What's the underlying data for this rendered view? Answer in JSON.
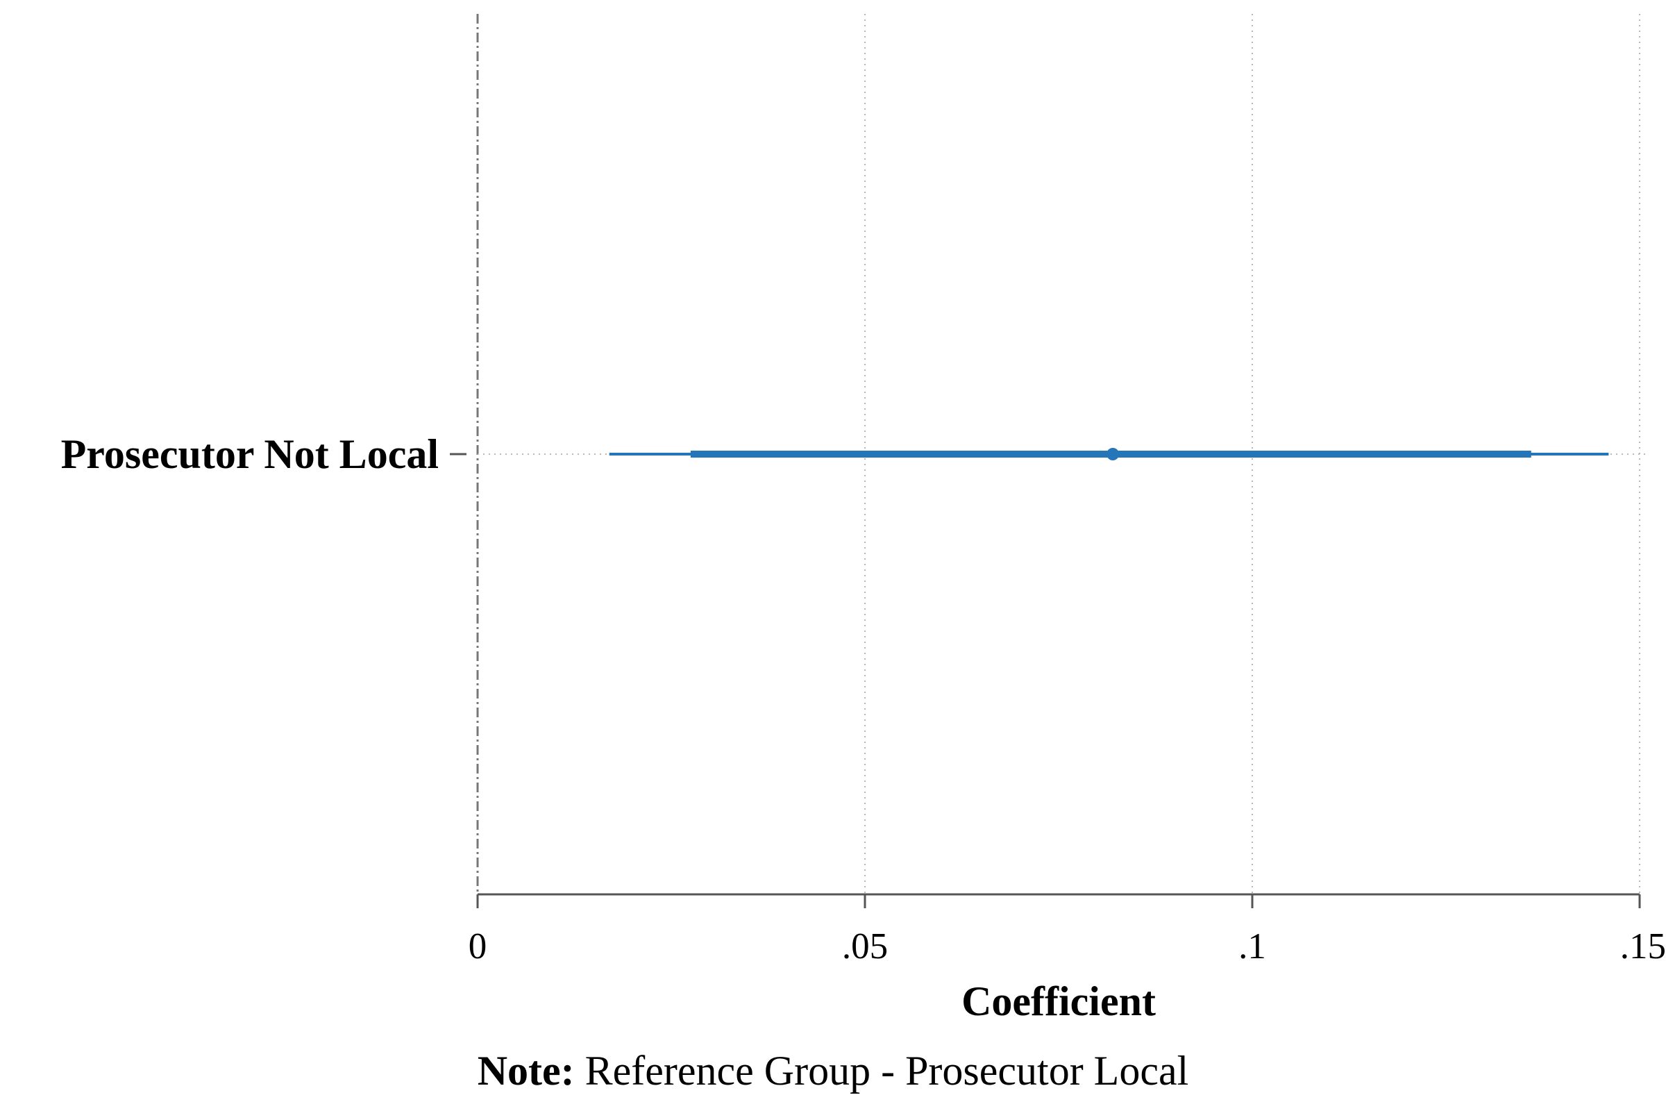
{
  "chart_data": {
    "type": "coefficient-plot",
    "orientation": "horizontal",
    "categories": [
      "Prosecutor Not Local"
    ],
    "series": [
      {
        "estimates": [
          0.082
        ],
        "ci_outer": [
          [
            0.017,
            0.146
          ]
        ],
        "ci_inner": [
          [
            0.0275,
            0.136
          ]
        ],
        "color": "#2476b8"
      }
    ],
    "xlim": [
      0,
      0.15
    ],
    "x_ticks": [
      0,
      0.05,
      0.1,
      0.15
    ],
    "x_tick_labels": [
      "0",
      ".05",
      ".1",
      ".15"
    ],
    "xlabel": "Coefficient",
    "ylabel": "",
    "reference_line_x": 0,
    "grid": "vertical-dotted",
    "note_label": "Note:",
    "note_text": " Reference Group - Prosecutor Local",
    "colors": {
      "estimate": "#2476b8",
      "axis": "#555555",
      "grid": "#b8b8b8",
      "reference_line": "#777777"
    }
  }
}
